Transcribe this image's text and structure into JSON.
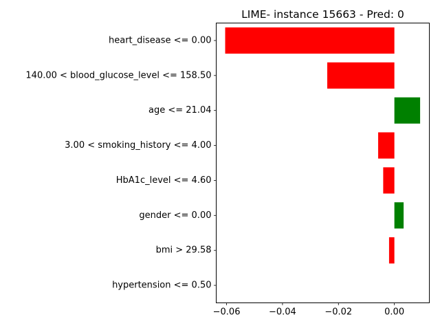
{
  "chart_data": {
    "type": "bar",
    "orientation": "horizontal",
    "title": "LIME- instance 15663 - Pred: 0",
    "xlabel": "",
    "ylabel": "",
    "xlim": [
      -0.0637,
      0.0125
    ],
    "xticks": [
      -0.06,
      -0.04,
      -0.02,
      0.0
    ],
    "xtick_labels": [
      "−0.06",
      "−0.04",
      "−0.02",
      "0.00"
    ],
    "grid": false,
    "categories": [
      "heart_disease <= 0.00",
      "140.00 < blood_glucose_level <= 158.50",
      "age <= 21.04",
      "3.00 < smoking_history <= 4.00",
      "HbA1c_level <= 4.60",
      "gender <= 0.00",
      "bmi > 29.58",
      "hypertension <= 0.50"
    ],
    "values": [
      -0.0605,
      -0.024,
      0.0092,
      -0.0058,
      -0.004,
      0.0033,
      -0.0019,
      0.0
    ],
    "colors": {
      "positive": "#008000",
      "negative": "#ff0000"
    }
  }
}
